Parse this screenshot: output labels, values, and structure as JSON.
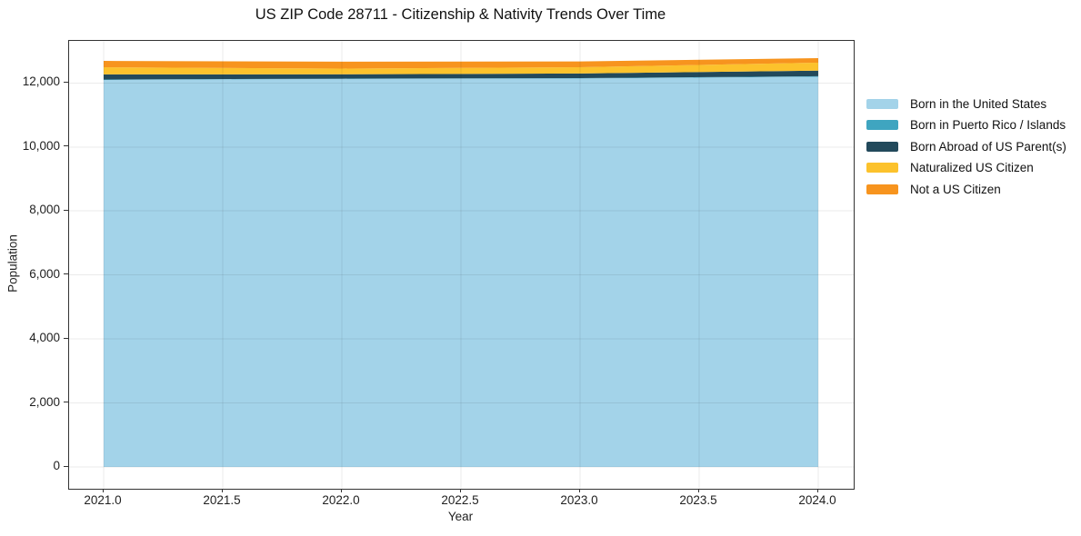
{
  "title": "US ZIP Code 28711 - Citizenship & Nativity Trends Over Time",
  "chart_data": {
    "type": "area",
    "stacked": true,
    "title": "US ZIP Code 28711 - Citizenship & Nativity Trends Over Time",
    "xlabel": "Year",
    "ylabel": "Population",
    "x": [
      2021,
      2022,
      2023,
      2024
    ],
    "series": [
      {
        "name": "Born in the United States",
        "color": "#A3D3E9",
        "values": [
          12095,
          12125,
          12140,
          12195
        ]
      },
      {
        "name": "Born in Puerto Rico / Islands",
        "color": "#3FA5C0",
        "values": [
          12,
          10,
          12,
          15
        ]
      },
      {
        "name": "Born Abroad of US Parent(s)",
        "color": "#22495B",
        "values": [
          160,
          135,
          143,
          175
        ]
      },
      {
        "name": "Naturalized US Citizen",
        "color": "#FCC22C",
        "values": [
          223,
          180,
          198,
          250
        ]
      },
      {
        "name": "Not a US Citizen",
        "color": "#F7941E",
        "values": [
          200,
          214,
          180,
          140
        ]
      }
    ],
    "xticks": [
      2021.0,
      2021.5,
      2022.0,
      2022.5,
      2023.0,
      2023.5,
      2024.0
    ],
    "xtick_labels": [
      "2021.0",
      "2021.5",
      "2022.0",
      "2022.5",
      "2023.0",
      "2023.5",
      "2024.0"
    ],
    "yticks": [
      0,
      2000,
      4000,
      6000,
      8000,
      10000,
      12000
    ],
    "ytick_labels": [
      "0",
      "2,000",
      "4,000",
      "6,000",
      "8,000",
      "10,000",
      "12,000"
    ],
    "xlim": [
      2020.855,
      2024.149
    ],
    "ylim": [
      -680,
      13315
    ],
    "grid": true,
    "legend_position": "right"
  }
}
